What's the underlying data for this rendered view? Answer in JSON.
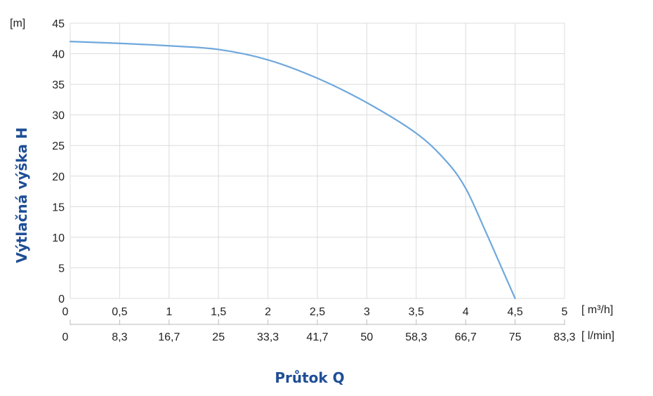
{
  "chart_data": {
    "type": "line",
    "title": "",
    "ylabel": "Výtlačná výška H",
    "xlabel": "Průtok Q",
    "y_unit": "[m]",
    "x_unit_primary": "[ m³/h]",
    "x_unit_secondary": "[ l/min]",
    "ylim": [
      0,
      45
    ],
    "xlim": [
      0,
      5
    ],
    "y_ticks": [
      "0",
      "5",
      "10",
      "15",
      "20",
      "25",
      "30",
      "35",
      "40",
      "45"
    ],
    "x_ticks_primary": [
      "0",
      "0,5",
      "1",
      "1,5",
      "2",
      "2,5",
      "3",
      "3,5",
      "4",
      "4,5",
      "5"
    ],
    "x_ticks_secondary": [
      "0",
      "8,3",
      "16,7",
      "25",
      "33,3",
      "41,7",
      "50",
      "58,3",
      "66,7",
      "75",
      "83,3"
    ],
    "grid": true,
    "series": [
      {
        "color": "#6fa8dc",
        "x": [
          0,
          0.5,
          1,
          1.5,
          2,
          2.5,
          3,
          3.5,
          3.8,
          4,
          4.2,
          4.35,
          4.5
        ],
        "y": [
          42,
          41.7,
          41.3,
          40.7,
          39,
          36,
          32,
          27,
          22.5,
          18,
          11,
          5.5,
          0
        ]
      }
    ]
  },
  "colors": {
    "grid": "#dcdcdc",
    "axis": "#bbbbbb",
    "title": "#1f4e96"
  }
}
